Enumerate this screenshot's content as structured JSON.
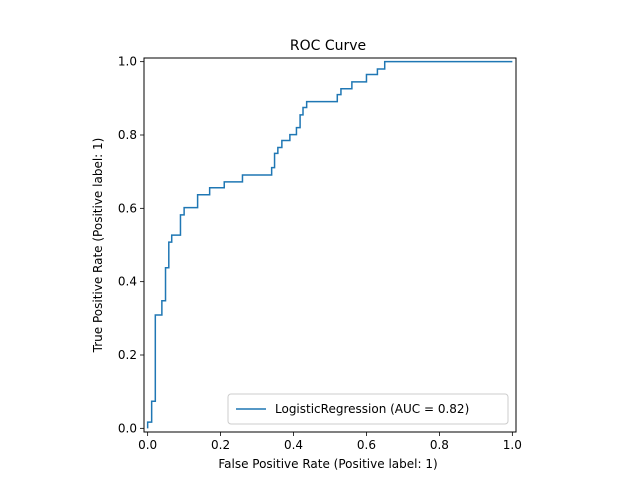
{
  "chart_data": {
    "type": "line",
    "title": "ROC Curve",
    "xlabel": "False Positive Rate (Positive label: 1)",
    "ylabel": "True Positive Rate (Positive label: 1)",
    "xlim": [
      -0.01,
      1.01
    ],
    "ylim": [
      -0.01,
      1.01
    ],
    "xticks": [
      "0.0",
      "0.2",
      "0.4",
      "0.6",
      "0.8",
      "1.0"
    ],
    "yticks": [
      "0.0",
      "0.2",
      "0.4",
      "0.6",
      "0.8",
      "1.0"
    ],
    "grid": false,
    "legend_position": "lower-right",
    "series": [
      {
        "name": "LogisticRegression (AUC = 0.82)",
        "color": "#1f77b4",
        "step": true,
        "points": [
          [
            0.0,
            0.0
          ],
          [
            0.0,
            0.017
          ],
          [
            0.011,
            0.017
          ],
          [
            0.011,
            0.074
          ],
          [
            0.021,
            0.074
          ],
          [
            0.021,
            0.309
          ],
          [
            0.039,
            0.309
          ],
          [
            0.039,
            0.348
          ],
          [
            0.049,
            0.348
          ],
          [
            0.049,
            0.438
          ],
          [
            0.058,
            0.438
          ],
          [
            0.058,
            0.508
          ],
          [
            0.066,
            0.508
          ],
          [
            0.066,
            0.527
          ],
          [
            0.09,
            0.527
          ],
          [
            0.09,
            0.582
          ],
          [
            0.1,
            0.582
          ],
          [
            0.1,
            0.602
          ],
          [
            0.137,
            0.602
          ],
          [
            0.137,
            0.637
          ],
          [
            0.17,
            0.637
          ],
          [
            0.17,
            0.656
          ],
          [
            0.21,
            0.656
          ],
          [
            0.21,
            0.672
          ],
          [
            0.26,
            0.672
          ],
          [
            0.26,
            0.691
          ],
          [
            0.34,
            0.691
          ],
          [
            0.34,
            0.711
          ],
          [
            0.348,
            0.711
          ],
          [
            0.348,
            0.75
          ],
          [
            0.357,
            0.75
          ],
          [
            0.357,
            0.766
          ],
          [
            0.368,
            0.766
          ],
          [
            0.368,
            0.785
          ],
          [
            0.39,
            0.785
          ],
          [
            0.39,
            0.801
          ],
          [
            0.408,
            0.801
          ],
          [
            0.408,
            0.82
          ],
          [
            0.418,
            0.82
          ],
          [
            0.418,
            0.855
          ],
          [
            0.426,
            0.855
          ],
          [
            0.426,
            0.875
          ],
          [
            0.436,
            0.875
          ],
          [
            0.436,
            0.891
          ],
          [
            0.52,
            0.891
          ],
          [
            0.52,
            0.91
          ],
          [
            0.53,
            0.91
          ],
          [
            0.53,
            0.926
          ],
          [
            0.56,
            0.926
          ],
          [
            0.56,
            0.945
          ],
          [
            0.6,
            0.945
          ],
          [
            0.6,
            0.965
          ],
          [
            0.63,
            0.965
          ],
          [
            0.63,
            0.98
          ],
          [
            0.65,
            0.98
          ],
          [
            0.65,
            1.0
          ],
          [
            1.0,
            1.0
          ]
        ]
      }
    ]
  }
}
